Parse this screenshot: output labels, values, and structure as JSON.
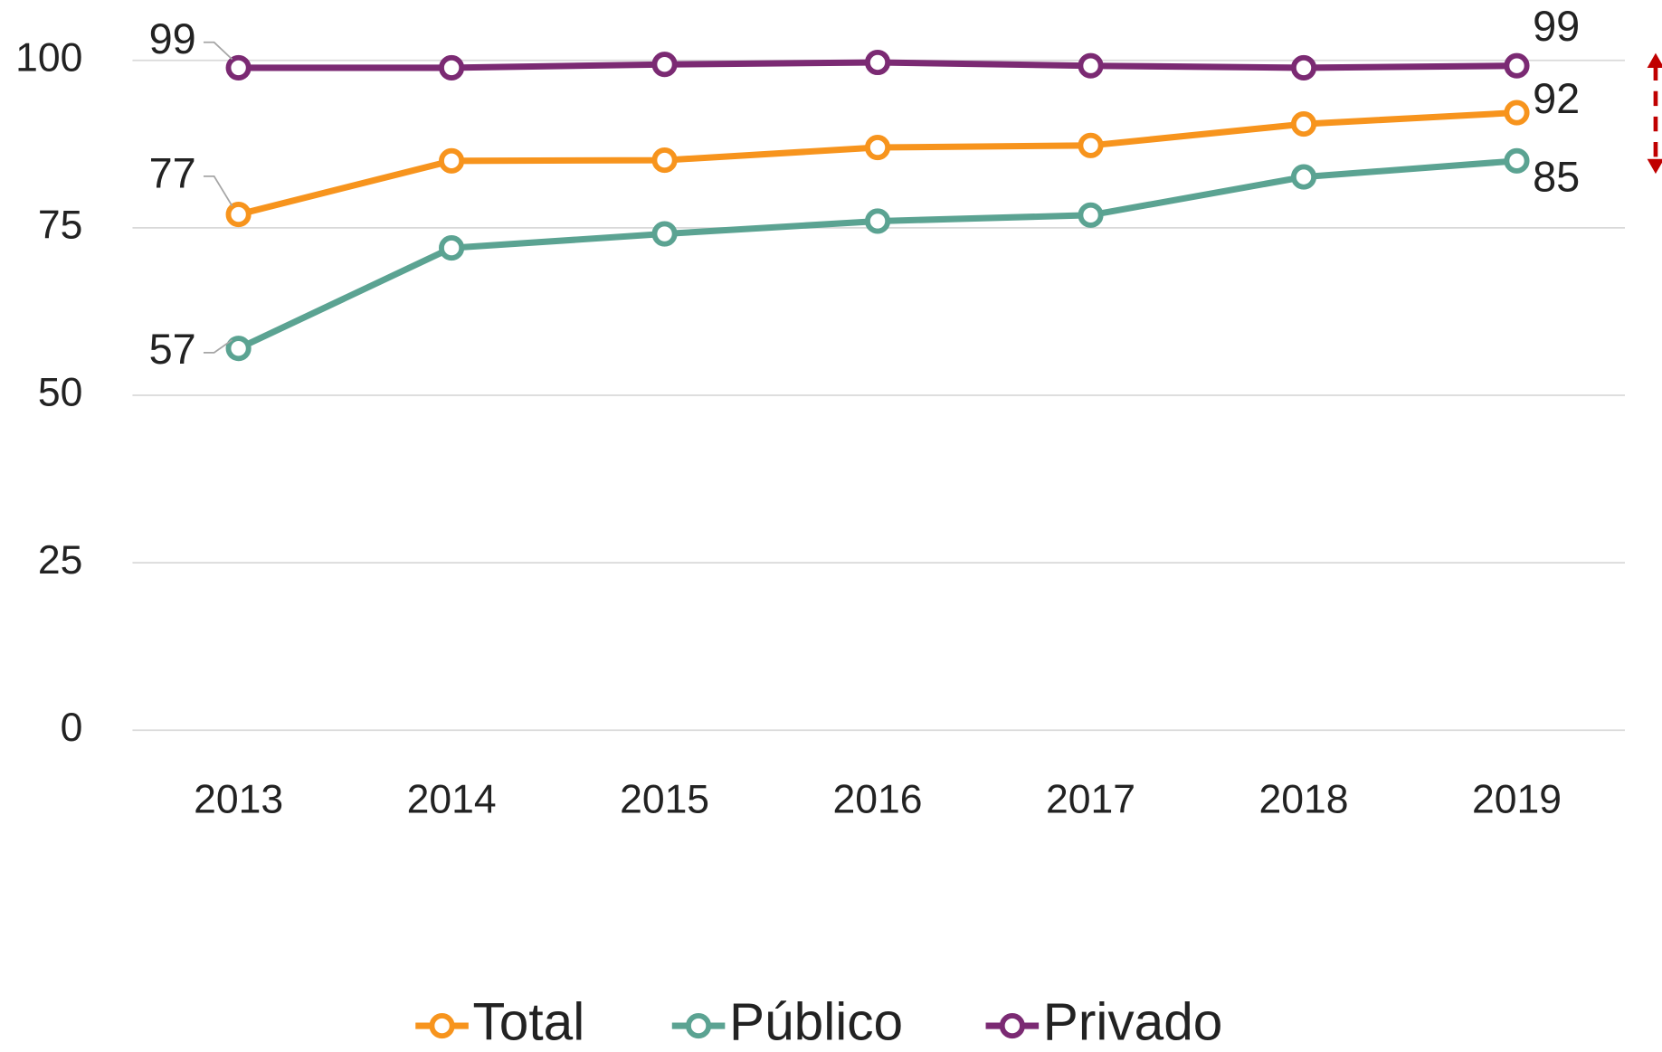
{
  "chart_data": {
    "type": "line",
    "categories": [
      "2013",
      "2014",
      "2015",
      "2016",
      "2017",
      "2018",
      "2019"
    ],
    "series": [
      {
        "name": "Total",
        "color": "#f7941d",
        "values": [
          77.0,
          85.0,
          85.1,
          87.0,
          87.3,
          90.5,
          92.2
        ],
        "value_labels": [
          "77",
          null,
          null,
          null,
          null,
          null,
          "92"
        ]
      },
      {
        "name": "Público",
        "color": "#5ba392",
        "values": [
          57.0,
          72.0,
          74.1,
          76.0,
          76.9,
          82.6,
          85.0
        ],
        "value_labels": [
          "57",
          null,
          null,
          null,
          null,
          null,
          "85"
        ]
      },
      {
        "name": "Privado",
        "color": "#7b2a73",
        "values": [
          98.9,
          98.9,
          99.4,
          99.7,
          99.2,
          98.9,
          99.2
        ],
        "value_labels": [
          "99",
          null,
          null,
          null,
          null,
          null,
          "99"
        ]
      }
    ],
    "ylim": [
      0,
      100
    ],
    "yticks": [
      0,
      25,
      50,
      75,
      100
    ],
    "grid": true,
    "legend": "bottom"
  }
}
